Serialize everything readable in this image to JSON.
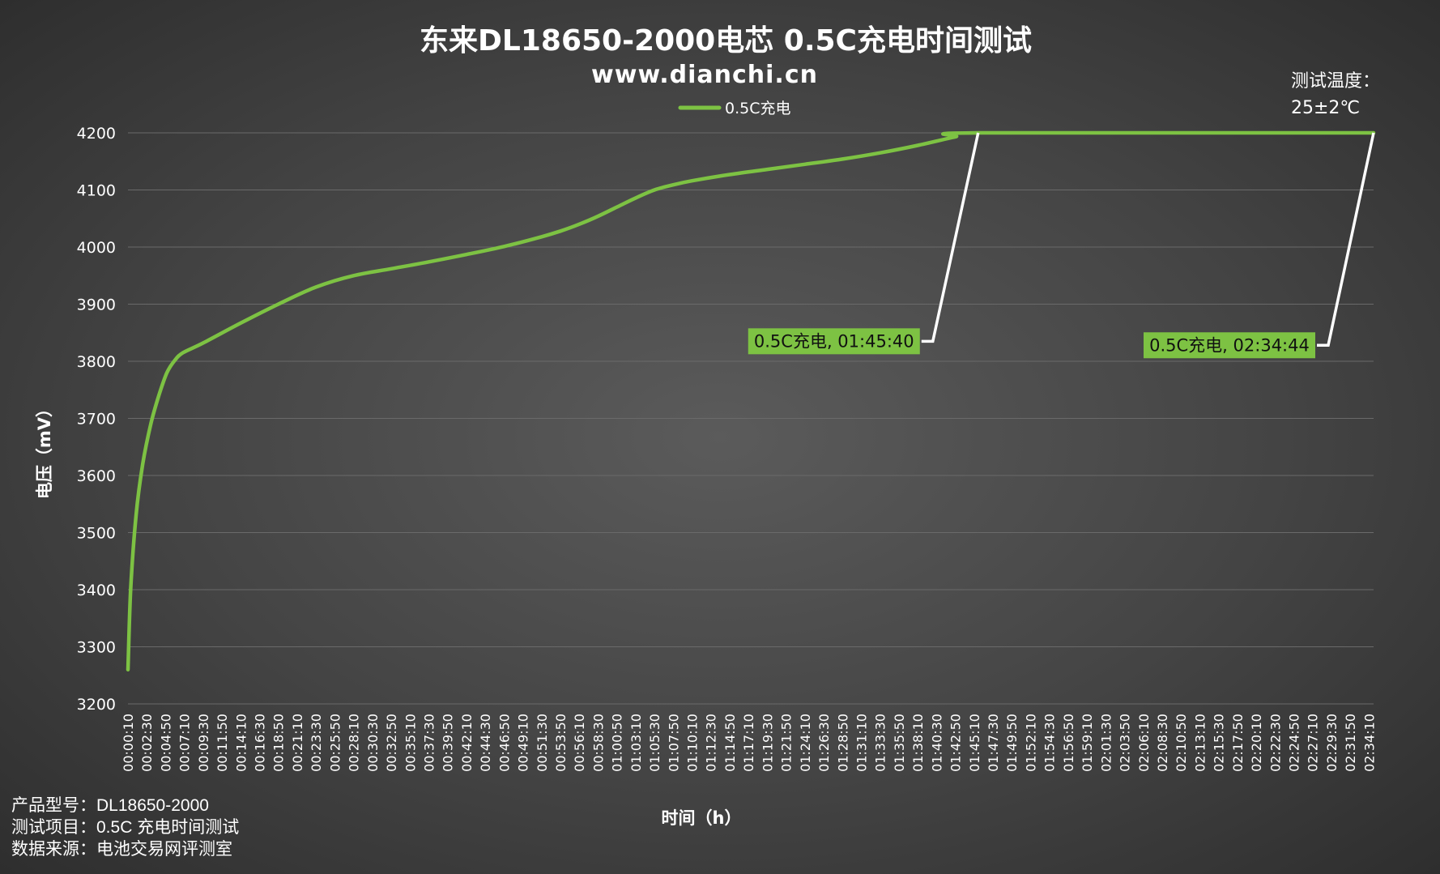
{
  "chart_data": {
    "type": "line",
    "title": "东来DL18650-2000电芯 0.5C充电时间测试",
    "subtitle": "www.dianchi.cn",
    "xlabel": "时间（h）",
    "ylabel": "电压（mV）",
    "ylim": [
      3200,
      4200
    ],
    "yticks": [
      3200,
      3300,
      3400,
      3500,
      3600,
      3700,
      3800,
      3900,
      4000,
      4100,
      4200
    ],
    "grid": true,
    "legend_position": "top-center",
    "x_ticks": [
      "00:00:10",
      "00:02:30",
      "00:04:50",
      "00:07:10",
      "00:09:30",
      "00:11:50",
      "00:14:10",
      "00:16:30",
      "00:18:50",
      "00:21:10",
      "00:23:30",
      "00:25:50",
      "00:28:10",
      "00:30:30",
      "00:32:50",
      "00:35:10",
      "00:37:30",
      "00:39:50",
      "00:42:10",
      "00:44:30",
      "00:46:50",
      "00:49:10",
      "00:51:30",
      "00:53:50",
      "00:56:10",
      "00:58:30",
      "01:00:50",
      "01:03:10",
      "01:05:30",
      "01:07:50",
      "01:10:10",
      "01:12:30",
      "01:14:50",
      "01:17:10",
      "01:19:30",
      "01:21:50",
      "01:24:10",
      "01:26:30",
      "01:28:50",
      "01:31:10",
      "01:33:30",
      "01:35:50",
      "01:38:10",
      "01:40:30",
      "01:42:50",
      "01:45:10",
      "01:47:30",
      "01:49:50",
      "01:52:10",
      "01:54:30",
      "01:56:50",
      "01:59:10",
      "02:01:30",
      "02:03:50",
      "02:06:10",
      "02:08:30",
      "02:10:50",
      "02:13:10",
      "02:15:30",
      "02:17:50",
      "02:20:10",
      "02:22:30",
      "02:24:50",
      "02:27:10",
      "02:29:30",
      "02:31:50",
      "02:34:10"
    ],
    "x_range": [
      "00:00:10",
      "02:34:44"
    ],
    "series": [
      {
        "name": "0.5C充电",
        "color": "#7dc243",
        "points": [
          [
            "00:00:10",
            3260
          ],
          [
            "00:00:30",
            3400
          ],
          [
            "00:01:10",
            3530
          ],
          [
            "00:02:00",
            3620
          ],
          [
            "00:03:00",
            3690
          ],
          [
            "00:04:00",
            3740
          ],
          [
            "00:05:00",
            3780
          ],
          [
            "00:06:00",
            3802
          ],
          [
            "00:07:00",
            3815
          ],
          [
            "00:09:30",
            3832
          ],
          [
            "00:14:10",
            3867
          ],
          [
            "00:18:50",
            3900
          ],
          [
            "00:23:30",
            3930
          ],
          [
            "00:28:10",
            3950
          ],
          [
            "00:32:50",
            3962
          ],
          [
            "00:37:30",
            3974
          ],
          [
            "00:42:10",
            3987
          ],
          [
            "00:46:50",
            4001
          ],
          [
            "00:51:30",
            4018
          ],
          [
            "00:53:50",
            4028
          ],
          [
            "00:56:10",
            4040
          ],
          [
            "00:58:30",
            4054
          ],
          [
            "01:00:50",
            4070
          ],
          [
            "01:03:10",
            4086
          ],
          [
            "01:05:30",
            4100
          ],
          [
            "01:07:50",
            4109
          ],
          [
            "01:10:10",
            4116
          ],
          [
            "01:14:50",
            4127
          ],
          [
            "01:19:30",
            4136
          ],
          [
            "01:24:10",
            4145
          ],
          [
            "01:28:50",
            4154
          ],
          [
            "01:33:30",
            4165
          ],
          [
            "01:38:10",
            4178
          ],
          [
            "01:42:50",
            4193
          ],
          [
            "01:45:40",
            4200
          ],
          [
            "02:34:44",
            4200
          ]
        ]
      }
    ],
    "annotations": [
      {
        "text": "0.5C充电, 01:45:40",
        "x": "01:45:40",
        "y": 4200,
        "label_y": 3835
      },
      {
        "text": "0.5C充电, 02:34:44",
        "x": "02:34:44",
        "y": 4200,
        "label_y": 3828
      }
    ],
    "note": {
      "line1": "测试温度：",
      "line2": "25±2℃"
    }
  },
  "footnotes": [
    "产品型号：DL18650-2000",
    "测试项目：0.5C 充电时间测试",
    "数据来源：电池交易网评测室"
  ]
}
